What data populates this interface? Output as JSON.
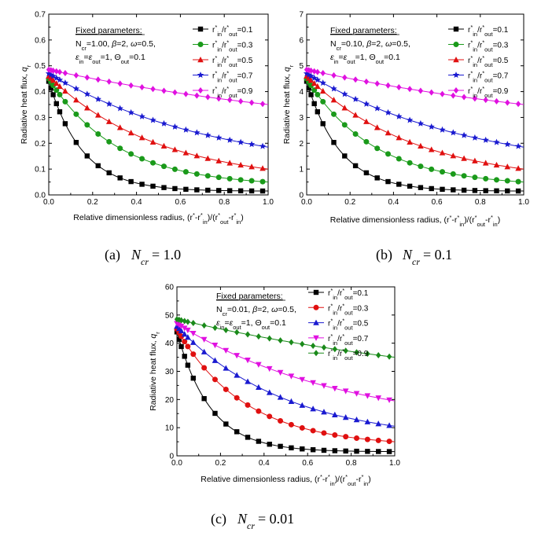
{
  "figure": {
    "captions": [
      "(a)  N_cr = 1.0",
      "(b)  N_cr = 0.1",
      "(c)  N_cr = 0.01"
    ]
  },
  "chart_data": [
    {
      "id": "a",
      "type": "line",
      "caption": "(a)  N_cr = 1.0",
      "caption_letter": "(a)",
      "caption_value": "= 1.0",
      "xlabel": "Relative dimensionless radius, (r*-r*in)/(r*out-r*in)",
      "ylabel": "Radiative heat flux, qr",
      "xlim": [
        0,
        1
      ],
      "ylim": [
        0,
        0.7
      ],
      "xticks": [
        "0.0",
        "0.2",
        "0.4",
        "0.6",
        "0.8",
        "1.0"
      ],
      "yticks": [
        "0.0",
        "0.1",
        "0.2",
        "0.3",
        "0.4",
        "0.5",
        "0.6",
        "0.7"
      ],
      "fixed_parameters": {
        "title": "Fixed parameters:",
        "line1": "Ncr=1.00, β=2, ω=0.5,",
        "line2": "εin=εout=1, Θout=0.1"
      },
      "series": [
        {
          "name": "r*in/r*out=0.1",
          "marker": "square",
          "color": "#000000",
          "y0": 0.44,
          "y1": 0.015,
          "k": 6.5
        },
        {
          "name": "r*in/r*out=0.3",
          "marker": "circle",
          "color": "#1a9a1a",
          "y0": 0.45,
          "y1": 0.05,
          "k": 3.2
        },
        {
          "name": "r*in/r*out=0.5",
          "marker": "triangle",
          "color": "#e01010",
          "y0": 0.46,
          "y1": 0.1,
          "k": 2.0
        },
        {
          "name": "r*in/r*out=0.7",
          "marker": "star",
          "color": "#1a1ad0",
          "y0": 0.47,
          "y1": 0.185,
          "k": 1.3
        },
        {
          "name": "r*in/r*out=0.9",
          "marker": "diamond",
          "color": "#e010e0",
          "y0": 0.485,
          "y1": 0.35,
          "k": 0.65
        }
      ]
    },
    {
      "id": "b",
      "type": "line",
      "caption": "(b)  N_cr = 0.1",
      "caption_letter": "(b)",
      "caption_value": "= 0.1",
      "xlabel": "Relative dimensionless radius, (r*-r*in)/(r*out-r*in)",
      "ylabel": "",
      "xlim": [
        0,
        1
      ],
      "ylim": [
        0,
        7
      ],
      "xticks": [
        "0.0",
        "0.2",
        "0.4",
        "0.6",
        "0.8",
        "1.0"
      ],
      "yticks": [
        "0",
        "1",
        "2",
        "3",
        "4",
        "5",
        "6",
        "7"
      ],
      "fixed_parameters": {
        "title": "Fixed parameters:",
        "line1": "Ncr=0.10, β=2, ω=0.5,",
        "line2": "εin=εout=1, Θout=0.1"
      },
      "series": [
        {
          "name": "r*in/r*out=0.1",
          "marker": "square",
          "color": "#000000",
          "y0": 4.4,
          "y1": 0.15,
          "k": 6.5
        },
        {
          "name": "r*in/r*out=0.3",
          "marker": "circle",
          "color": "#1a9a1a",
          "y0": 4.5,
          "y1": 0.5,
          "k": 3.2
        },
        {
          "name": "r*in/r*out=0.5",
          "marker": "triangle",
          "color": "#e01010",
          "y0": 4.6,
          "y1": 1.0,
          "k": 2.0
        },
        {
          "name": "r*in/r*out=0.7",
          "marker": "star",
          "color": "#1a1ad0",
          "y0": 4.7,
          "y1": 1.85,
          "k": 1.3
        },
        {
          "name": "r*in/r*out=0.9",
          "marker": "diamond",
          "color": "#e010e0",
          "y0": 4.85,
          "y1": 3.5,
          "k": 0.65
        }
      ]
    },
    {
      "id": "c",
      "type": "line",
      "caption": "(c)  N_cr = 0.01",
      "caption_letter": "(c)",
      "caption_value": "= 0.01",
      "xlabel": "Relative dimensionless radius, (r*-r*in)/(r*out-r*in)",
      "ylabel": "Radiative heat flux, qr",
      "xlim": [
        0,
        1
      ],
      "ylim": [
        0,
        60
      ],
      "xticks": [
        "0.0",
        "0.2",
        "0.4",
        "0.6",
        "0.8",
        "1.0"
      ],
      "yticks": [
        "0",
        "10",
        "20",
        "30",
        "40",
        "50",
        "60"
      ],
      "fixed_parameters": {
        "title": "Fixed parameters:",
        "line1": "Ncr=0.01, β=2, ω=0.5,",
        "line2": "εin=εout=1, Θout=0.1"
      },
      "series": [
        {
          "name": "r*in/r*out=0.1",
          "marker": "square",
          "color": "#000000",
          "y0": 44,
          "y1": 1.5,
          "k": 6.5
        },
        {
          "name": "r*in/r*out=0.3",
          "marker": "circle",
          "color": "#e01010",
          "y0": 45,
          "y1": 5,
          "k": 3.2
        },
        {
          "name": "r*in/r*out=0.5",
          "marker": "triangle",
          "color": "#1a1ad0",
          "y0": 46,
          "y1": 10.5,
          "k": 2.0
        },
        {
          "name": "r*in/r*out=0.7",
          "marker": "triangle-down",
          "color": "#e010e0",
          "y0": 47,
          "y1": 19.5,
          "k": 1.3
        },
        {
          "name": "r*in/r*out=0.9",
          "marker": "diamond",
          "color": "#1a8a1a",
          "y0": 48.5,
          "y1": 35,
          "k": 0.65
        }
      ]
    }
  ]
}
